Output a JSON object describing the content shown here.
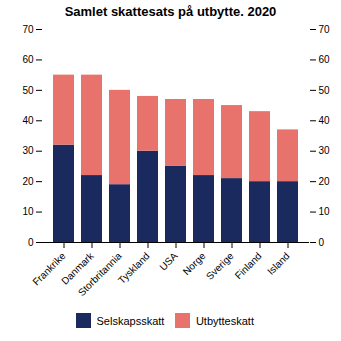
{
  "chart_data": {
    "type": "bar",
    "stacked": true,
    "title": "Samlet skattesats på utbytte. 2020",
    "categories": [
      "Frankrike",
      "Danmark",
      "Storbritannia",
      "Tyskland",
      "USA",
      "Norge",
      "Sverige",
      "Finland",
      "Island"
    ],
    "series": [
      {
        "name": "Selskapsskatt",
        "color": "#1b2a5e",
        "values": [
          32,
          22,
          19,
          30,
          25,
          22,
          21,
          20,
          20
        ]
      },
      {
        "name": "Utbytteskatt",
        "color": "#e8736c",
        "values": [
          23,
          33,
          31,
          18,
          22,
          25,
          24,
          23,
          17
        ]
      }
    ],
    "ylim": [
      0,
      70
    ],
    "yticks": [
      0,
      10,
      20,
      30,
      40,
      50,
      60,
      70
    ],
    "y2lim": [
      0,
      70
    ],
    "y2ticks": [
      0,
      10,
      20,
      30,
      40,
      50,
      60,
      70
    ],
    "grid": false,
    "legend": "bottom"
  }
}
